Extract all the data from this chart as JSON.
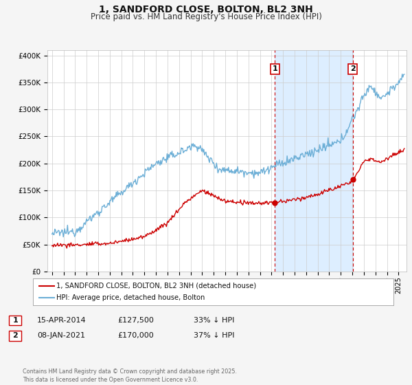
{
  "title": "1, SANDFORD CLOSE, BOLTON, BL2 3NH",
  "subtitle": "Price paid vs. HM Land Registry's House Price Index (HPI)",
  "ylim": [
    0,
    410000
  ],
  "yticks": [
    0,
    50000,
    100000,
    150000,
    200000,
    250000,
    300000,
    350000,
    400000
  ],
  "ytick_labels": [
    "£0",
    "£50K",
    "£100K",
    "£150K",
    "£200K",
    "£250K",
    "£300K",
    "£350K",
    "£400K"
  ],
  "hpi_color": "#6baed6",
  "hpi_shade_color": "#ddeeff",
  "price_color": "#cc0000",
  "vline_color": "#cc0000",
  "marker1_date": 2014.29,
  "marker2_date": 2021.03,
  "marker1_price": 127500,
  "marker2_price": 170000,
  "legend_line1": "1, SANDFORD CLOSE, BOLTON, BL2 3NH (detached house)",
  "legend_line2": "HPI: Average price, detached house, Bolton",
  "table_row1": [
    "1",
    "15-APR-2014",
    "£127,500",
    "33% ↓ HPI"
  ],
  "table_row2": [
    "2",
    "08-JAN-2021",
    "£170,000",
    "37% ↓ HPI"
  ],
  "footnote": "Contains HM Land Registry data © Crown copyright and database right 2025.\nThis data is licensed under the Open Government Licence v3.0.",
  "background_color": "#f5f5f5",
  "plot_bg_color": "#ffffff",
  "grid_color": "#cccccc",
  "title_fontsize": 10,
  "subtitle_fontsize": 8.5,
  "tick_fontsize": 7.5
}
